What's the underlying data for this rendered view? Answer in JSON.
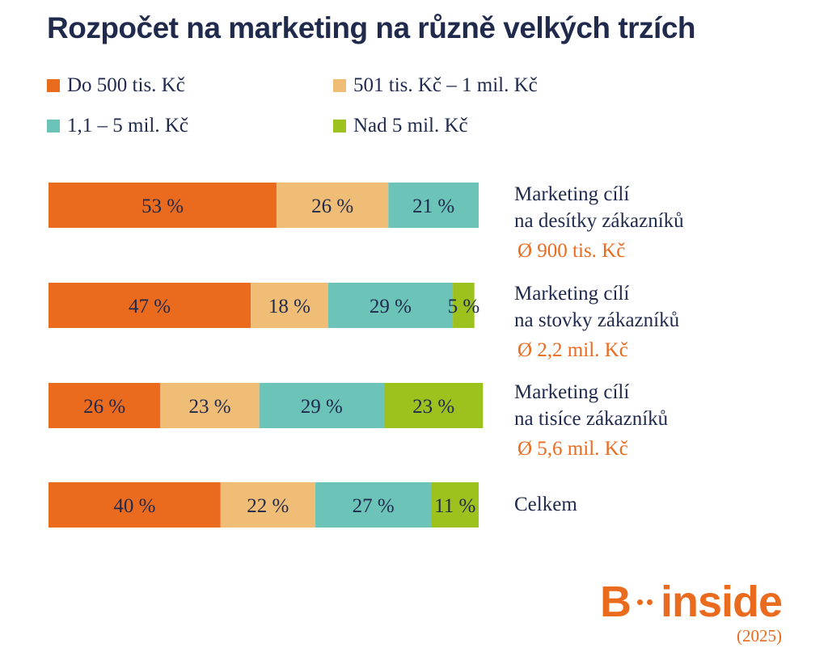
{
  "title": "Rozpočet na marketing na různě velkých trzích",
  "legend": [
    {
      "label": "Do 500 tis. Kč",
      "color": "#ea6a1e"
    },
    {
      "label": "501 tis. Kč – 1 mil. Kč",
      "color": "#f0bd76"
    },
    {
      "label": "1,1 – 5 mil. Kč",
      "color": "#6cc3b8"
    },
    {
      "label": "Nad 5 mil. Kč",
      "color": "#9dc21e"
    }
  ],
  "rows": [
    {
      "line1": "Marketing cílí",
      "line2": "na desítky zákazníků",
      "avg": "Ø 900 tis. Kč"
    },
    {
      "line1": "Marketing cílí",
      "line2": "na stovky zákazníků",
      "avg": "Ø 2,2 mil. Kč"
    },
    {
      "line1": "Marketing cílí",
      "line2": "na tisíce zákazníků",
      "avg": "Ø 5,6 mil. Kč"
    },
    {
      "line1": "Celkem",
      "line2": "",
      "avg": ""
    }
  ],
  "chart_data": {
    "type": "bar",
    "orientation": "horizontal",
    "stacked": true,
    "title": "Rozpočet na marketing na různě velkých trzích",
    "categories": [
      "Marketing cílí na desítky zákazníků",
      "Marketing cílí na stovky zákazníků",
      "Marketing cílí na tisíce zákazníků",
      "Celkem"
    ],
    "series": [
      {
        "name": "Do 500 tis. Kč",
        "color": "#ea6a1e",
        "values": [
          53,
          47,
          26,
          40
        ]
      },
      {
        "name": "501 tis. Kč – 1 mil. Kč",
        "color": "#f0bd76",
        "values": [
          26,
          18,
          23,
          22
        ]
      },
      {
        "name": "1,1 – 5 mil. Kč",
        "color": "#6cc3b8",
        "values": [
          21,
          29,
          29,
          27
        ]
      },
      {
        "name": "Nad 5 mil. Kč",
        "color": "#9dc21e",
        "values": [
          0,
          5,
          23,
          11
        ]
      }
    ],
    "value_suffix": " %",
    "legend": "top"
  },
  "logo": {
    "text_b": "B",
    "text_inside": "inside",
    "year": "(2025)"
  }
}
